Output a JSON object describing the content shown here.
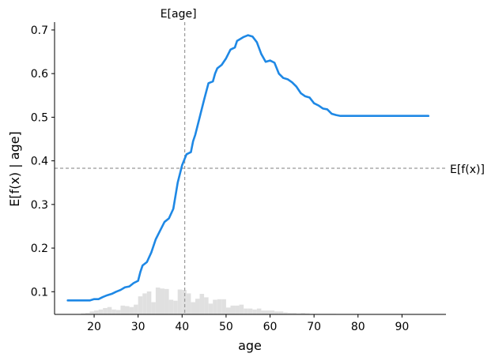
{
  "chart_data": {
    "type": "line",
    "xlabel": "age",
    "ylabel": "E[f(x) | age]",
    "xlim": [
      11,
      100
    ],
    "ylim": [
      0.048,
      0.718
    ],
    "x_ticks": [
      20,
      30,
      40,
      50,
      60,
      70,
      80,
      90
    ],
    "y_ticks": [
      0.1,
      0.2,
      0.3,
      0.4,
      0.5,
      0.6,
      0.7
    ],
    "grid": false,
    "series": [
      {
        "color": "#1e88e5",
        "points": [
          [
            14,
            0.08
          ],
          [
            17,
            0.08
          ],
          [
            19,
            0.08
          ],
          [
            20,
            0.083
          ],
          [
            21,
            0.083
          ],
          [
            22,
            0.088
          ],
          [
            23,
            0.092
          ],
          [
            24,
            0.095
          ],
          [
            25,
            0.1
          ],
          [
            26,
            0.104
          ],
          [
            27,
            0.11
          ],
          [
            28,
            0.112
          ],
          [
            29,
            0.12
          ],
          [
            30,
            0.125
          ],
          [
            30.5,
            0.145
          ],
          [
            31,
            0.16
          ],
          [
            32,
            0.168
          ],
          [
            33,
            0.19
          ],
          [
            34,
            0.22
          ],
          [
            35,
            0.24
          ],
          [
            36,
            0.26
          ],
          [
            37,
            0.268
          ],
          [
            38,
            0.29
          ],
          [
            38.5,
            0.32
          ],
          [
            39,
            0.35
          ],
          [
            40,
            0.39
          ],
          [
            41,
            0.415
          ],
          [
            42,
            0.42
          ],
          [
            42.5,
            0.445
          ],
          [
            43,
            0.46
          ],
          [
            44,
            0.5
          ],
          [
            45,
            0.54
          ],
          [
            46,
            0.578
          ],
          [
            47,
            0.582
          ],
          [
            47.5,
            0.6
          ],
          [
            48,
            0.612
          ],
          [
            49,
            0.62
          ],
          [
            50,
            0.635
          ],
          [
            51,
            0.655
          ],
          [
            52,
            0.66
          ],
          [
            52.5,
            0.675
          ],
          [
            53,
            0.678
          ],
          [
            54,
            0.684
          ],
          [
            55,
            0.688
          ],
          [
            56,
            0.685
          ],
          [
            57,
            0.672
          ],
          [
            58,
            0.645
          ],
          [
            59,
            0.627
          ],
          [
            60,
            0.63
          ],
          [
            61,
            0.625
          ],
          [
            62,
            0.6
          ],
          [
            63,
            0.59
          ],
          [
            64,
            0.587
          ],
          [
            65,
            0.58
          ],
          [
            66,
            0.57
          ],
          [
            67,
            0.555
          ],
          [
            68,
            0.548
          ],
          [
            69,
            0.545
          ],
          [
            70,
            0.532
          ],
          [
            71,
            0.527
          ],
          [
            72,
            0.52
          ],
          [
            73,
            0.518
          ],
          [
            74,
            0.508
          ],
          [
            75,
            0.505
          ],
          [
            76,
            0.503
          ],
          [
            80,
            0.503
          ],
          [
            85,
            0.503
          ],
          [
            90,
            0.503
          ],
          [
            96,
            0.503
          ]
        ]
      }
    ],
    "reference_lines": [
      {
        "orientation": "vertical",
        "value": 40.6,
        "label": "E[age]",
        "color": "#999999",
        "style": "dashed"
      },
      {
        "orientation": "horizontal",
        "value": 0.383,
        "label": "E[f(x)]",
        "color": "#999999",
        "style": "dashed"
      }
    ],
    "histogram": {
      "color": "#e0e0e0",
      "bins": [
        [
          17,
          18,
          0.002
        ],
        [
          18,
          19,
          0.003
        ],
        [
          19,
          20,
          0.006
        ],
        [
          20,
          21,
          0.008
        ],
        [
          21,
          22,
          0.01
        ],
        [
          22,
          23,
          0.013
        ],
        [
          23,
          24,
          0.015
        ],
        [
          24,
          25,
          0.01
        ],
        [
          25,
          26,
          0.009
        ],
        [
          26,
          27,
          0.018
        ],
        [
          27,
          28,
          0.017
        ],
        [
          28,
          29,
          0.015
        ],
        [
          29,
          30,
          0.02
        ],
        [
          30,
          31,
          0.037
        ],
        [
          31,
          32,
          0.043
        ],
        [
          32,
          33,
          0.047
        ],
        [
          33,
          34,
          0.025
        ],
        [
          34,
          35,
          0.055
        ],
        [
          35,
          36,
          0.053
        ],
        [
          36,
          37,
          0.052
        ],
        [
          37,
          38,
          0.03
        ],
        [
          38,
          39,
          0.028
        ],
        [
          39,
          40,
          0.051
        ],
        [
          40,
          41,
          0.05
        ],
        [
          41,
          42,
          0.043
        ],
        [
          42,
          43,
          0.025
        ],
        [
          43,
          44,
          0.032
        ],
        [
          44,
          45,
          0.042
        ],
        [
          45,
          46,
          0.035
        ],
        [
          46,
          47,
          0.022
        ],
        [
          47,
          48,
          0.03
        ],
        [
          48,
          49,
          0.031
        ],
        [
          49,
          50,
          0.031
        ],
        [
          50,
          51,
          0.014
        ],
        [
          51,
          52,
          0.018
        ],
        [
          52,
          53,
          0.018
        ],
        [
          53,
          54,
          0.02
        ],
        [
          54,
          55,
          0.012
        ],
        [
          55,
          56,
          0.012
        ],
        [
          56,
          57,
          0.01
        ],
        [
          57,
          58,
          0.012
        ],
        [
          58,
          59,
          0.008
        ],
        [
          59,
          60,
          0.008
        ],
        [
          60,
          61,
          0.008
        ],
        [
          61,
          62,
          0.006
        ],
        [
          62,
          63,
          0.006
        ],
        [
          63,
          64,
          0.004
        ],
        [
          64,
          65,
          0.003
        ],
        [
          65,
          66,
          0.003
        ],
        [
          66,
          67,
          0.002
        ],
        [
          67,
          68,
          0.003
        ],
        [
          68,
          69,
          0.002
        ],
        [
          69,
          70,
          0.001
        ],
        [
          70,
          72,
          0.001
        ],
        [
          72,
          75,
          0.001
        ],
        [
          75,
          80,
          0.0005
        ],
        [
          80,
          90,
          0.0004
        ]
      ]
    }
  }
}
